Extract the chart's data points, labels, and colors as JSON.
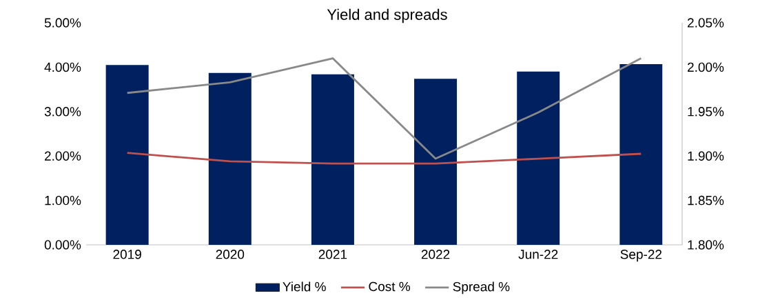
{
  "chart_data": {
    "type": "bar",
    "title": "Yield and spreads",
    "categories": [
      "2019",
      "2020",
      "2021",
      "2022",
      "Jun-22",
      "Sep-22"
    ],
    "series": [
      {
        "name": "Yield %",
        "type": "bar",
        "color": "#002060",
        "values": [
          4.05,
          3.87,
          3.84,
          3.74,
          3.9,
          4.07
        ]
      },
      {
        "name": "Cost %",
        "type": "line",
        "color": "#c0504d",
        "values": [
          2.07,
          1.88,
          1.83,
          1.83,
          1.94,
          2.05
        ]
      },
      {
        "name": "Spread %",
        "type": "line",
        "axis": "y2",
        "color": "#898989",
        "values": [
          1.971,
          1.983,
          2.01,
          1.897,
          1.949,
          2.01
        ]
      }
    ],
    "ylim": [
      0,
      5
    ],
    "yticks": [
      {
        "value": 0,
        "label": "0.00%"
      },
      {
        "value": 1,
        "label": "1.00%"
      },
      {
        "value": 2,
        "label": "2.00%"
      },
      {
        "value": 3,
        "label": "3.00%"
      },
      {
        "value": 4,
        "label": "4.00%"
      },
      {
        "value": 5,
        "label": "5.00%"
      }
    ],
    "y2lim": [
      1.8,
      2.05
    ],
    "y2ticks": [
      {
        "value": 1.8,
        "label": "1.80%"
      },
      {
        "value": 1.85,
        "label": "1.85%"
      },
      {
        "value": 1.9,
        "label": "1.90%"
      },
      {
        "value": 1.95,
        "label": "1.95%"
      },
      {
        "value": 2.0,
        "label": "2.00%"
      },
      {
        "value": 2.05,
        "label": "2.05%"
      }
    ],
    "legend": "bottom"
  }
}
